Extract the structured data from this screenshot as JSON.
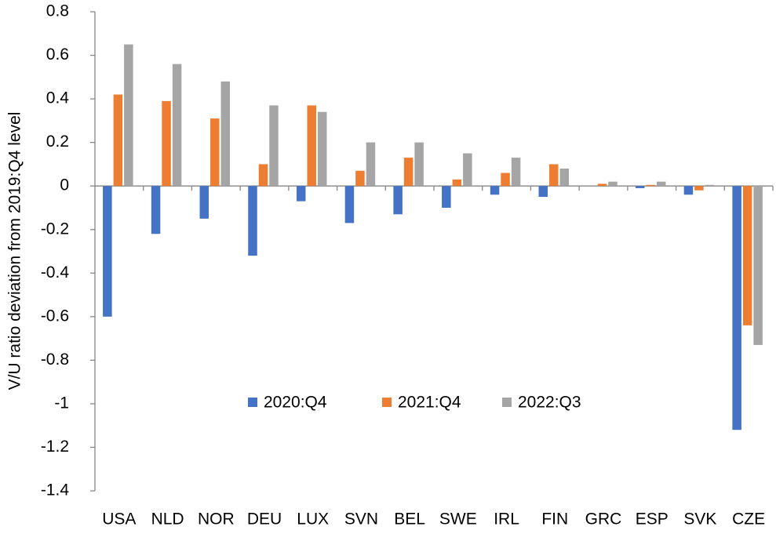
{
  "chart_data": {
    "type": "bar",
    "y_label": "V/U ratio deviation from 2019:Q4 level",
    "categories": [
      "USA",
      "NLD",
      "NOR",
      "DEU",
      "LUX",
      "SVN",
      "BEL",
      "SWE",
      "IRL",
      "FIN",
      "GRC",
      "ESP",
      "SVK",
      "CZE"
    ],
    "series": [
      {
        "name": "2020:Q4",
        "color": "#4472c4",
        "values": [
          -0.6,
          -0.22,
          -0.15,
          -0.32,
          -0.07,
          -0.17,
          -0.13,
          -0.1,
          -0.04,
          -0.05,
          0.0,
          -0.01,
          -0.04,
          -1.12
        ]
      },
      {
        "name": "2021:Q4",
        "color": "#ed7d31",
        "values": [
          0.42,
          0.39,
          0.31,
          0.1,
          0.37,
          0.07,
          0.13,
          0.03,
          0.06,
          0.1,
          0.01,
          0.005,
          -0.02,
          -0.64
        ]
      },
      {
        "name": "2022:Q3",
        "color": "#a5a5a5",
        "values": [
          0.65,
          0.56,
          0.48,
          0.37,
          0.34,
          0.2,
          0.2,
          0.15,
          0.13,
          0.08,
          0.02,
          0.02,
          0.005,
          -0.73
        ]
      }
    ],
    "ylim": [
      -1.4,
      0.8
    ],
    "yticks": [
      0.8,
      0.6,
      0.4,
      0.2,
      0,
      -0.2,
      -0.4,
      -0.6,
      -0.8,
      -1,
      -1.2,
      -1.4
    ]
  }
}
